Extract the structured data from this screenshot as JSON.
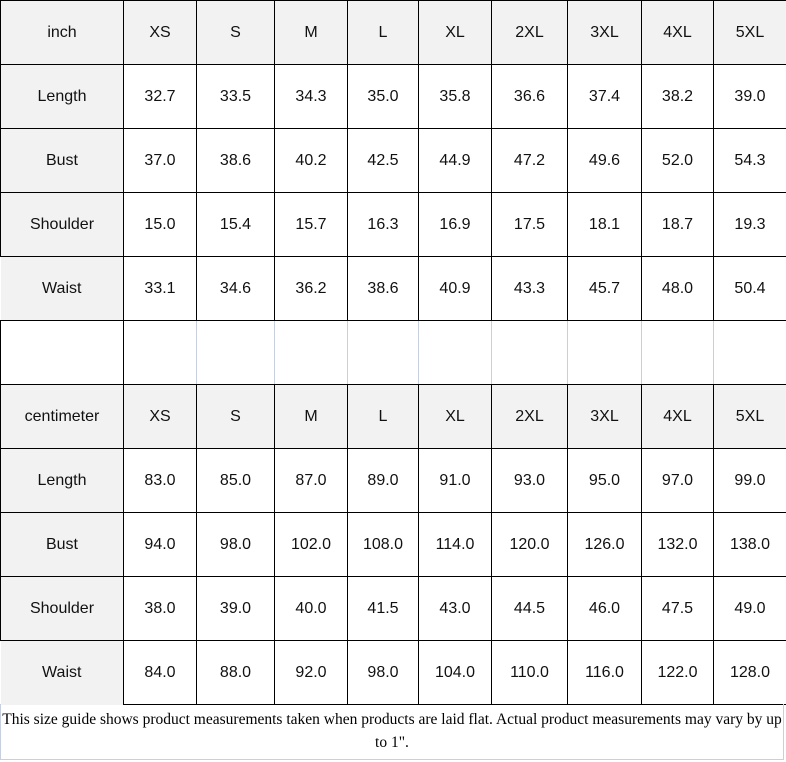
{
  "tables": [
    {
      "unit": "inch",
      "sizes": [
        "XS",
        "S",
        "M",
        "L",
        "XL",
        "2XL",
        "3XL",
        "4XL",
        "5XL"
      ],
      "rows": [
        {
          "label": "Length",
          "values": [
            "32.7",
            "33.5",
            "34.3",
            "35.0",
            "35.8",
            "36.6",
            "37.4",
            "38.2",
            "39.0"
          ]
        },
        {
          "label": "Bust",
          "values": [
            "37.0",
            "38.6",
            "40.2",
            "42.5",
            "44.9",
            "47.2",
            "49.6",
            "52.0",
            "54.3"
          ]
        },
        {
          "label": "Shoulder",
          "values": [
            "15.0",
            "15.4",
            "15.7",
            "16.3",
            "16.9",
            "17.5",
            "18.1",
            "18.7",
            "19.3"
          ]
        },
        {
          "label": "Waist",
          "values": [
            "33.1",
            "34.6",
            "36.2",
            "38.6",
            "40.9",
            "43.3",
            "45.7",
            "48.0",
            "50.4"
          ]
        }
      ]
    },
    {
      "unit": "centimeter",
      "sizes": [
        "XS",
        "S",
        "M",
        "L",
        "XL",
        "2XL",
        "3XL",
        "4XL",
        "5XL"
      ],
      "rows": [
        {
          "label": "Length",
          "values": [
            "83.0",
            "85.0",
            "87.0",
            "89.0",
            "91.0",
            "93.0",
            "95.0",
            "97.0",
            "99.0"
          ]
        },
        {
          "label": "Bust",
          "values": [
            "94.0",
            "98.0",
            "102.0",
            "108.0",
            "114.0",
            "120.0",
            "126.0",
            "132.0",
            "138.0"
          ]
        },
        {
          "label": "Shoulder",
          "values": [
            "38.0",
            "39.0",
            "40.0",
            "41.5",
            "43.0",
            "44.5",
            "46.0",
            "47.5",
            "49.0"
          ]
        },
        {
          "label": "Waist",
          "values": [
            "84.0",
            "88.0",
            "92.0",
            "98.0",
            "104.0",
            "110.0",
            "116.0",
            "122.0",
            "128.0"
          ]
        }
      ]
    }
  ],
  "footer": "This size guide shows product measurements taken when products are laid flat. Actual product measurements may vary by up to 1\"."
}
